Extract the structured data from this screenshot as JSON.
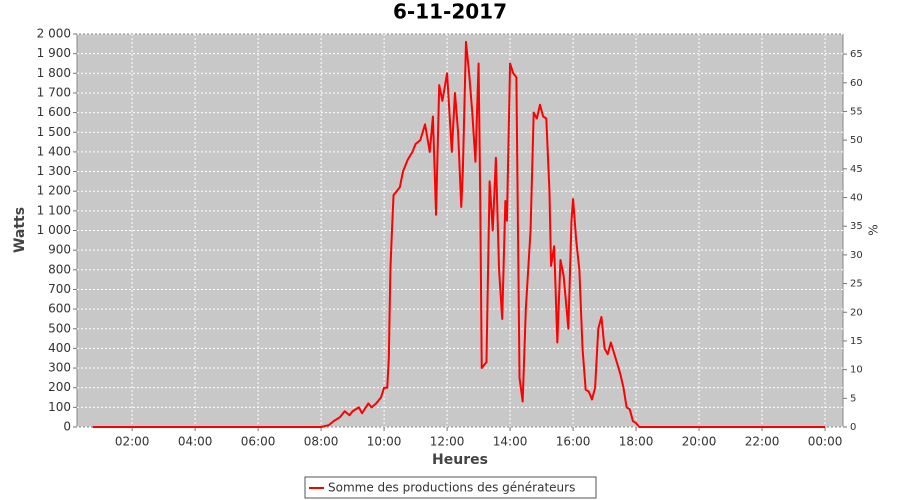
{
  "chart_data": {
    "type": "line",
    "title": "6-11-2017",
    "xlabel": "Heures",
    "ylabel": "Watts",
    "y2label": "%",
    "xlim": [
      0.25,
      24.57
    ],
    "ylim": [
      0,
      2000
    ],
    "y2lim": [
      0,
      68.5
    ],
    "grid": true,
    "xticks": [
      {
        "value": 2,
        "label": "02:00"
      },
      {
        "value": 4,
        "label": "04:00"
      },
      {
        "value": 6,
        "label": "06:00"
      },
      {
        "value": 8,
        "label": "08:00"
      },
      {
        "value": 10,
        "label": "10:00"
      },
      {
        "value": 12,
        "label": "12:00"
      },
      {
        "value": 14,
        "label": "14:00"
      },
      {
        "value": 16,
        "label": "16:00"
      },
      {
        "value": 18,
        "label": "18:00"
      },
      {
        "value": 20,
        "label": "20:00"
      },
      {
        "value": 22,
        "label": "22:00"
      },
      {
        "value": 24,
        "label": "00:00"
      }
    ],
    "yticks": [
      0,
      100,
      200,
      300,
      400,
      500,
      600,
      700,
      800,
      900,
      {
        "value": 1000,
        "label": "1 000"
      },
      {
        "value": 1100,
        "label": "1 100"
      },
      {
        "value": 1200,
        "label": "1 200"
      },
      {
        "value": 1300,
        "label": "1 300"
      },
      {
        "value": 1400,
        "label": "1 400"
      },
      {
        "value": 1500,
        "label": "1 500"
      },
      {
        "value": 1600,
        "label": "1 600"
      },
      {
        "value": 1700,
        "label": "1 700"
      },
      {
        "value": 1800,
        "label": "1 800"
      },
      {
        "value": 1900,
        "label": "1 900"
      },
      {
        "value": 2000,
        "label": "2 000"
      }
    ],
    "y2ticks": [
      0,
      5,
      10,
      15,
      20,
      25,
      30,
      35,
      40,
      45,
      50,
      55,
      60,
      65
    ],
    "x": [
      0.75,
      8.0,
      8.25,
      8.4,
      8.6,
      8.75,
      8.9,
      9.0,
      9.2,
      9.3,
      9.5,
      9.6,
      9.75,
      9.9,
      10.0,
      10.1,
      10.15,
      10.2,
      10.25,
      10.3,
      10.5,
      10.6,
      10.75,
      10.9,
      11.0,
      11.15,
      11.3,
      11.45,
      11.55,
      11.65,
      11.75,
      11.85,
      12.0,
      12.15,
      12.25,
      12.35,
      12.45,
      12.5,
      12.6,
      12.7,
      12.8,
      12.9,
      13.0,
      13.05,
      13.1,
      13.25,
      13.35,
      13.45,
      13.55,
      13.65,
      13.75,
      13.85,
      13.9,
      14.0,
      14.1,
      14.2,
      14.3,
      14.4,
      14.5,
      14.65,
      14.75,
      14.85,
      14.95,
      15.05,
      15.15,
      15.25,
      15.3,
      15.4,
      15.5,
      15.6,
      15.7,
      15.85,
      15.95,
      16.0,
      16.1,
      16.2,
      16.3,
      16.4,
      16.5,
      16.6,
      16.7,
      16.8,
      16.9,
      17.0,
      17.1,
      17.2,
      17.35,
      17.5,
      17.6,
      17.7,
      17.8,
      17.9,
      18.0,
      18.1,
      24.0
    ],
    "series": [
      {
        "name": "Somme des productions des  générateurs",
        "color": "#ff0000",
        "values": [
          0,
          0,
          10,
          30,
          50,
          80,
          60,
          80,
          100,
          70,
          120,
          100,
          120,
          150,
          200,
          200,
          350,
          800,
          1000,
          1180,
          1220,
          1300,
          1360,
          1400,
          1440,
          1460,
          1540,
          1400,
          1580,
          1080,
          1740,
          1660,
          1800,
          1400,
          1700,
          1500,
          1120,
          1300,
          1960,
          1800,
          1600,
          1350,
          1850,
          1200,
          300,
          330,
          1250,
          1000,
          1370,
          800,
          550,
          1150,
          1050,
          1850,
          1800,
          1780,
          250,
          130,
          600,
          1000,
          1600,
          1570,
          1640,
          1580,
          1570,
          1200,
          820,
          920,
          430,
          850,
          770,
          500,
          1050,
          1160,
          950,
          800,
          400,
          190,
          180,
          140,
          200,
          500,
          560,
          400,
          370,
          430,
          350,
          270,
          200,
          100,
          90,
          30,
          20,
          0,
          0
        ]
      }
    ]
  }
}
